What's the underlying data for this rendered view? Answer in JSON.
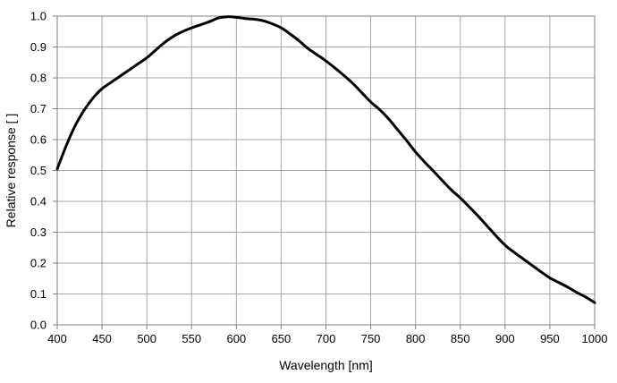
{
  "chart_data": {
    "type": "line",
    "title": "",
    "xlabel": "Wavelength [nm]",
    "ylabel": "Relative response [ ]",
    "xlim": [
      400,
      1000
    ],
    "ylim": [
      0,
      1.0
    ],
    "x_ticks": [
      "400",
      "450",
      "500",
      "550",
      "600",
      "650",
      "700",
      "750",
      "800",
      "850",
      "900",
      "950",
      "1000"
    ],
    "y_ticks": [
      "0.0",
      "0.1",
      "0.2",
      "0.3",
      "0.4",
      "0.5",
      "0.6",
      "0.7",
      "0.8",
      "0.9",
      "1.0"
    ],
    "grid": true,
    "legend": "none",
    "series": [
      {
        "color": "#000000",
        "x": [
          400,
          410,
          420,
          430,
          440,
          450,
          460,
          470,
          480,
          490,
          500,
          510,
          520,
          530,
          540,
          550,
          560,
          570,
          580,
          590,
          600,
          610,
          620,
          630,
          640,
          650,
          660,
          670,
          680,
          690,
          700,
          710,
          720,
          730,
          740,
          750,
          760,
          770,
          780,
          790,
          800,
          810,
          820,
          830,
          840,
          850,
          860,
          870,
          880,
          890,
          900,
          910,
          920,
          930,
          940,
          950,
          960,
          970,
          980,
          990,
          1000
        ],
        "y": [
          0.505,
          0.58,
          0.645,
          0.695,
          0.735,
          0.765,
          0.785,
          0.805,
          0.825,
          0.845,
          0.865,
          0.89,
          0.915,
          0.935,
          0.95,
          0.962,
          0.972,
          0.982,
          0.994,
          0.998,
          0.996,
          0.992,
          0.99,
          0.985,
          0.975,
          0.962,
          0.942,
          0.92,
          0.895,
          0.875,
          0.855,
          0.832,
          0.808,
          0.782,
          0.752,
          0.722,
          0.697,
          0.667,
          0.632,
          0.597,
          0.56,
          0.528,
          0.498,
          0.467,
          0.437,
          0.411,
          0.382,
          0.352,
          0.32,
          0.288,
          0.258,
          0.235,
          0.214,
          0.193,
          0.172,
          0.152,
          0.137,
          0.122,
          0.105,
          0.09,
          0.072
        ]
      }
    ]
  }
}
